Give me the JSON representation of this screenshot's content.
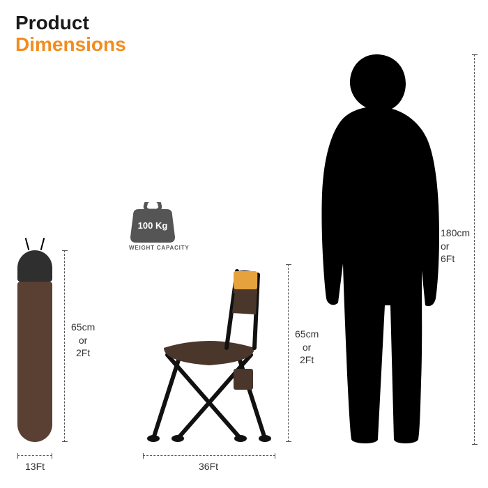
{
  "title": {
    "line1": "Product",
    "line2": "Dimensions",
    "line1_color": "#1a1a1a",
    "line2_color": "#f28c1e"
  },
  "colors": {
    "bag_top": "#2f2f2f",
    "bag_body": "#5a4032",
    "chair_fabric": "#4a362b",
    "chair_accent": "#e6a23c",
    "chair_frame": "#111111",
    "weight_fill": "#555555",
    "person_fill": "#000000",
    "dim_line": "#555555",
    "text": "#333333"
  },
  "bag": {
    "height_label": "65cm\nor\n2Ft",
    "width_label": "13Ft"
  },
  "chair": {
    "height_label": "65cm\nor\n2Ft",
    "width_label": "36Ft"
  },
  "person": {
    "height_label": "180cm\nor\n6Ft"
  },
  "weight": {
    "value": "100 Kg",
    "caption": "WEIGHT CAPACITY"
  }
}
